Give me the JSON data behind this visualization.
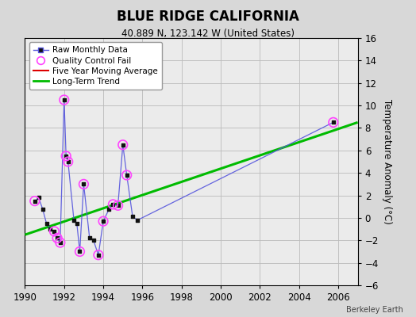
{
  "title": "BLUE RIDGE CALIFORNIA",
  "subtitle": "40.889 N, 123.142 W (United States)",
  "ylabel": "Temperature Anomaly (°C)",
  "credit": "Berkeley Earth",
  "xlim": [
    1990,
    2007
  ],
  "ylim": [
    -6,
    16
  ],
  "yticks": [
    -6,
    -4,
    -2,
    0,
    2,
    4,
    6,
    8,
    10,
    12,
    14,
    16
  ],
  "xticks": [
    1990,
    1992,
    1994,
    1996,
    1998,
    2000,
    2002,
    2004,
    2006
  ],
  "bg_color": "#d8d8d8",
  "plot_bg_color": "#ebebeb",
  "raw_x": [
    1990.5,
    1990.7,
    1990.9,
    1991.1,
    1991.3,
    1991.5,
    1991.65,
    1991.8,
    1992.0,
    1992.1,
    1992.2,
    1992.5,
    1992.65,
    1992.8,
    1993.0,
    1993.3,
    1993.5,
    1993.75,
    1994.0,
    1994.3,
    1994.5,
    1994.75,
    1995.0,
    1995.2,
    1995.5,
    1995.75,
    2005.75
  ],
  "raw_y": [
    1.5,
    1.8,
    0.8,
    -0.5,
    -1.0,
    -1.2,
    -1.8,
    -2.2,
    10.5,
    5.5,
    5.0,
    -0.2,
    -0.5,
    -3.0,
    3.0,
    -1.8,
    -2.0,
    -3.3,
    -0.3,
    0.8,
    1.2,
    1.1,
    6.5,
    3.8,
    0.1,
    -0.2,
    8.5
  ],
  "qc_x": [
    1990.5,
    1991.5,
    1991.65,
    1991.8,
    1992.0,
    1992.1,
    1992.2,
    1992.8,
    1993.0,
    1993.75,
    1994.0,
    1994.5,
    1994.75,
    1995.0,
    1995.2,
    2005.75
  ],
  "qc_y": [
    1.5,
    -1.2,
    -1.8,
    -2.2,
    10.5,
    5.5,
    5.0,
    -3.0,
    3.0,
    -3.3,
    -0.3,
    1.2,
    1.1,
    6.5,
    3.8,
    8.5
  ],
  "trend_x": [
    1990,
    2007
  ],
  "trend_y": [
    -1.5,
    8.5
  ],
  "raw_line_color": "#5555dd",
  "raw_marker_color": "#111111",
  "qc_marker_color": "#ff44ff",
  "trend_color": "#00bb00",
  "mavg_color": "#dd0000",
  "grid_color": "#bbbbbb"
}
